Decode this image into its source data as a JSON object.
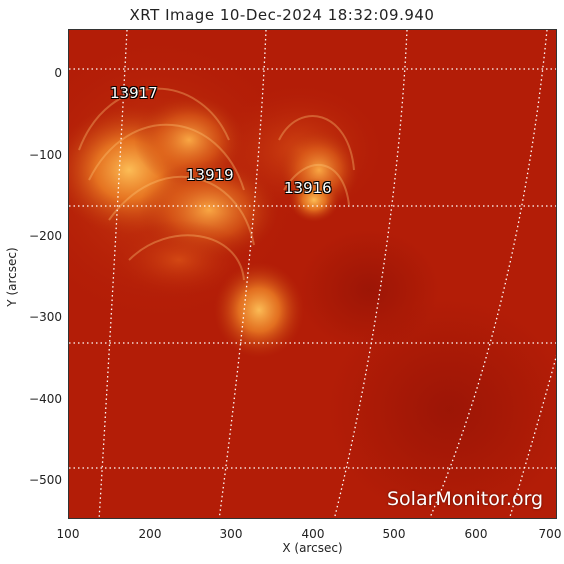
{
  "title": "XRT Image 10-Dec-2024 18:32:09.940",
  "axes": {
    "x_label": "X (arcsec)",
    "y_label": "Y (arcsec)",
    "x_ticks": [
      "100",
      "200",
      "300",
      "400",
      "500",
      "600",
      "700"
    ],
    "y_ticks": [
      "0",
      "−100",
      "−200",
      "−300",
      "−400",
      "−500"
    ]
  },
  "regions": [
    {
      "number": "13917"
    },
    {
      "number": "13919"
    },
    {
      "number": "13916"
    }
  ],
  "watermark": "SolarMonitor.org",
  "colors": {
    "background": "#b01a06",
    "bright": "#ffb24a",
    "grid": "#ffffff"
  }
}
